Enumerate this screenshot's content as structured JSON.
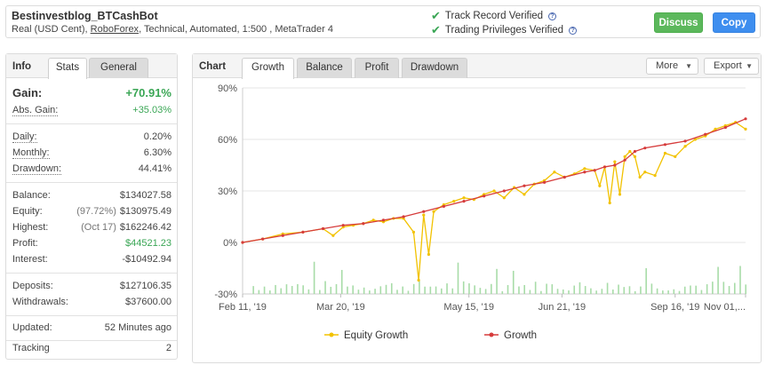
{
  "header": {
    "title": "Bestinvestblog_BTCashBot",
    "sub_prefix": "Real (USD Cent), ",
    "broker": "RoboForex",
    "sub_suffix": ", Technical, Automated, 1:500 , MetaTrader 4",
    "verified": [
      "Track Record Verified",
      "Trading Privileges Verified"
    ],
    "discuss_label": "Discuss",
    "copy_label": "Copy"
  },
  "left": {
    "tabs": [
      "Info",
      "Stats",
      "General"
    ],
    "gain": {
      "label": "Gain:",
      "value": "+70.91%"
    },
    "abs_gain": {
      "label": "Abs. Gain:",
      "value": "+35.03%"
    },
    "daily": {
      "label": "Daily:",
      "value": "0.20%"
    },
    "monthly": {
      "label": "Monthly:",
      "value": "6.30%"
    },
    "drawdown": {
      "label": "Drawdown:",
      "value": "44.41%"
    },
    "balance": {
      "label": "Balance:",
      "value": "$134027.58"
    },
    "equity": {
      "label": "Equity:",
      "pre": "(97.72%)",
      "value": "$130975.49"
    },
    "highest": {
      "label": "Highest:",
      "pre": "(Oct 17)",
      "value": "$162246.42"
    },
    "profit": {
      "label": "Profit:",
      "value": "$44521.23"
    },
    "interest": {
      "label": "Interest:",
      "value": "-$10492.94"
    },
    "deposits": {
      "label": "Deposits:",
      "value": "$127106.35"
    },
    "withdrawals": {
      "label": "Withdrawals:",
      "value": "$37600.00"
    },
    "updated": {
      "label": "Updated:",
      "value": "52 Minutes ago"
    },
    "tracking": {
      "label": "Tracking",
      "value": "2"
    }
  },
  "chart_panel": {
    "title": "Chart",
    "tabs": [
      "Growth",
      "Balance",
      "Profit",
      "Drawdown"
    ],
    "active_tab": "Growth",
    "more_label": "More",
    "export_label": "Export"
  },
  "colors": {
    "growth": "#d63b3b",
    "equity": "#f2c200",
    "bars": "#a8dca8",
    "positive": "#3aa655"
  },
  "chart_data": {
    "type": "line",
    "y_ticks": [
      "90%",
      "60%",
      "30%",
      "0%",
      "-30%"
    ],
    "x_ticks": [
      "Feb 11, '19",
      "Mar 20, '19",
      "May 15, '19",
      "Jun 21, '19",
      "Sep 16, '19",
      "Nov 01,..."
    ],
    "ylim": [
      -30,
      90
    ],
    "legend_placement": "bottom",
    "series": [
      {
        "name": "Equity Growth",
        "x": [
          0,
          4,
          8,
          12,
          16,
          18,
          20,
          22,
          24,
          26,
          28,
          30,
          32,
          34,
          35,
          36,
          37,
          38,
          40,
          42,
          44,
          46,
          48,
          50,
          52,
          54,
          56,
          58,
          60,
          62,
          64,
          66,
          68,
          70,
          71,
          72,
          73,
          74,
          75,
          76,
          77,
          78,
          79,
          80,
          82,
          84,
          86,
          88,
          90,
          92,
          94,
          96,
          98,
          100
        ],
        "values": [
          0,
          2,
          5,
          6,
          8,
          4,
          9,
          10,
          11,
          13,
          12,
          14,
          14,
          6,
          -22,
          16,
          -7,
          18,
          22,
          24,
          26,
          25,
          28,
          30,
          26,
          32,
          28,
          34,
          36,
          41,
          38,
          40,
          43,
          42,
          33,
          44,
          23,
          47,
          28,
          50,
          53,
          50,
          38,
          41,
          39,
          52,
          50,
          56,
          60,
          62,
          66,
          68,
          70,
          66
        ]
      },
      {
        "name": "Growth",
        "x": [
          0,
          4,
          8,
          12,
          16,
          20,
          24,
          28,
          32,
          36,
          40,
          44,
          48,
          52,
          56,
          60,
          64,
          68,
          70,
          72,
          74,
          76,
          78,
          80,
          84,
          88,
          92,
          96,
          100
        ],
        "values": [
          0,
          2,
          4,
          6,
          8,
          10,
          11,
          13,
          15,
          18,
          21,
          24,
          27,
          30,
          33,
          35,
          38,
          41,
          42,
          44,
          45,
          48,
          53,
          55,
          57,
          59,
          63,
          67,
          72
        ]
      }
    ]
  }
}
